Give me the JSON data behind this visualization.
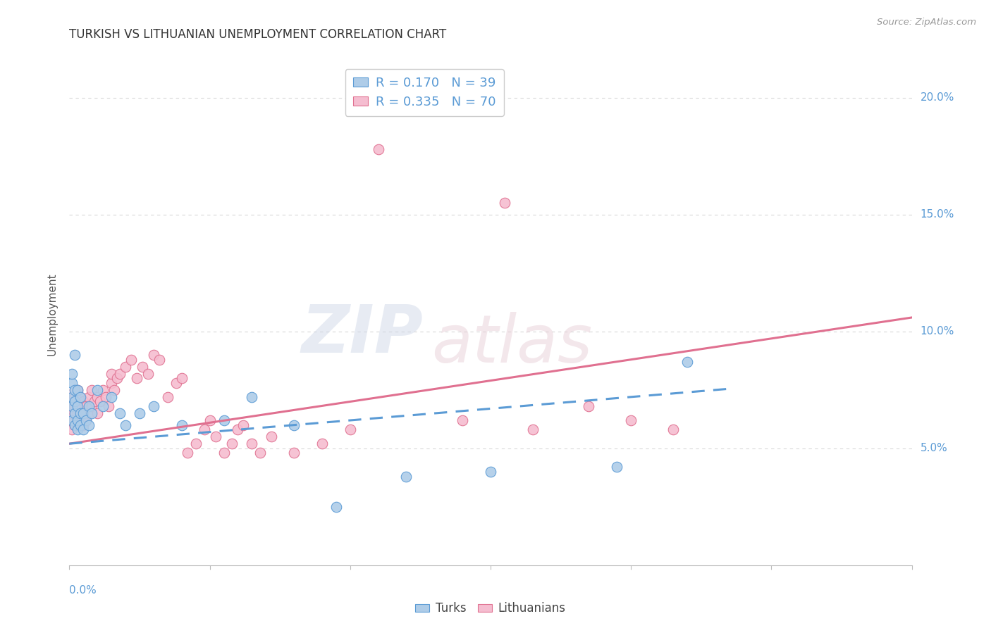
{
  "title": "TURKISH VS LITHUANIAN UNEMPLOYMENT CORRELATION CHART",
  "source": "Source: ZipAtlas.com",
  "ylabel": "Unemployment",
  "yticks": [
    0.05,
    0.1,
    0.15,
    0.2
  ],
  "ytick_labels": [
    "5.0%",
    "10.0%",
    "15.0%",
    "20.0%"
  ],
  "xmin": 0.0,
  "xmax": 0.3,
  "ymin": 0.0,
  "ymax": 0.215,
  "watermark_zip": "ZIP",
  "watermark_atlas": "atlas",
  "turks_color": "#aecce8",
  "turks_edge_color": "#5b9bd5",
  "lithuanians_color": "#f5bdd0",
  "lithuanians_edge_color": "#e07090",
  "trend_turks_color": "#5b9bd5",
  "trend_lithuanians_color": "#e07090",
  "R_turks": 0.17,
  "N_turks": 39,
  "R_lithuanians": 0.335,
  "N_lithuanians": 70,
  "turks_x": [
    0.001,
    0.001,
    0.001,
    0.001,
    0.001,
    0.002,
    0.002,
    0.002,
    0.002,
    0.002,
    0.003,
    0.003,
    0.003,
    0.003,
    0.004,
    0.004,
    0.004,
    0.005,
    0.005,
    0.006,
    0.007,
    0.007,
    0.008,
    0.01,
    0.012,
    0.015,
    0.018,
    0.02,
    0.025,
    0.03,
    0.04,
    0.055,
    0.065,
    0.08,
    0.095,
    0.12,
    0.15,
    0.195,
    0.22
  ],
  "turks_y": [
    0.062,
    0.068,
    0.072,
    0.078,
    0.082,
    0.06,
    0.065,
    0.07,
    0.075,
    0.09,
    0.058,
    0.062,
    0.068,
    0.075,
    0.06,
    0.065,
    0.072,
    0.058,
    0.065,
    0.062,
    0.06,
    0.068,
    0.065,
    0.075,
    0.068,
    0.072,
    0.065,
    0.06,
    0.065,
    0.068,
    0.06,
    0.062,
    0.072,
    0.06,
    0.025,
    0.038,
    0.04,
    0.042,
    0.087
  ],
  "lithuanians_x": [
    0.001,
    0.001,
    0.001,
    0.001,
    0.001,
    0.002,
    0.002,
    0.002,
    0.002,
    0.002,
    0.003,
    0.003,
    0.003,
    0.003,
    0.004,
    0.004,
    0.004,
    0.005,
    0.005,
    0.005,
    0.006,
    0.006,
    0.007,
    0.007,
    0.008,
    0.008,
    0.009,
    0.01,
    0.01,
    0.011,
    0.012,
    0.013,
    0.014,
    0.015,
    0.015,
    0.016,
    0.017,
    0.018,
    0.02,
    0.022,
    0.024,
    0.026,
    0.028,
    0.03,
    0.032,
    0.035,
    0.038,
    0.04,
    0.042,
    0.045,
    0.048,
    0.05,
    0.052,
    0.055,
    0.058,
    0.06,
    0.062,
    0.065,
    0.068,
    0.072,
    0.08,
    0.09,
    0.1,
    0.11,
    0.14,
    0.155,
    0.165,
    0.185,
    0.2,
    0.215
  ],
  "lithuanians_y": [
    0.058,
    0.062,
    0.065,
    0.068,
    0.072,
    0.06,
    0.065,
    0.068,
    0.072,
    0.075,
    0.06,
    0.065,
    0.07,
    0.075,
    0.062,
    0.068,
    0.072,
    0.06,
    0.065,
    0.07,
    0.062,
    0.068,
    0.065,
    0.072,
    0.068,
    0.075,
    0.07,
    0.065,
    0.072,
    0.07,
    0.075,
    0.072,
    0.068,
    0.078,
    0.082,
    0.075,
    0.08,
    0.082,
    0.085,
    0.088,
    0.08,
    0.085,
    0.082,
    0.09,
    0.088,
    0.072,
    0.078,
    0.08,
    0.048,
    0.052,
    0.058,
    0.062,
    0.055,
    0.048,
    0.052,
    0.058,
    0.06,
    0.052,
    0.048,
    0.055,
    0.048,
    0.052,
    0.058,
    0.178,
    0.062,
    0.155,
    0.058,
    0.068,
    0.062,
    0.058
  ],
  "background_color": "#ffffff",
  "grid_color": "#d8d8d8",
  "title_fontsize": 12,
  "axis_label_color": "#5b9bd5",
  "ylabel_color": "#555555",
  "trend_lith_slope": 0.18,
  "trend_lith_intercept": 0.052,
  "trend_turks_slope": 0.1,
  "trend_turks_intercept": 0.052
}
